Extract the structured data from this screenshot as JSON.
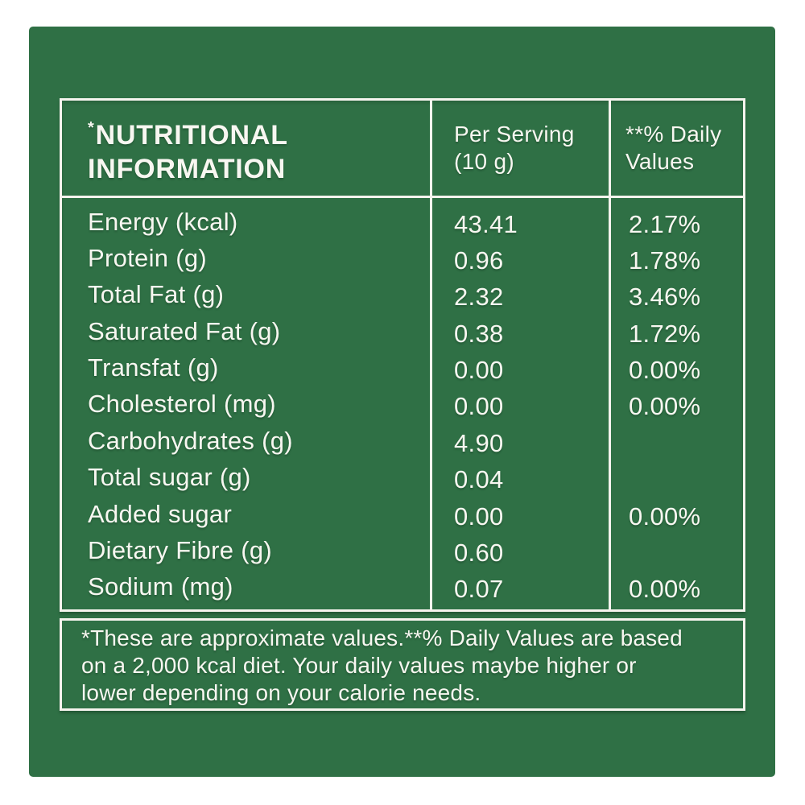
{
  "panel": {
    "background_color": "#2f7045",
    "text_color": "#f8f7f1"
  },
  "table": {
    "header": {
      "title_asterisk": "*",
      "title": "NUTRITIONAL INFORMATION",
      "col_serving": {
        "line1": "Per Serving",
        "line2": "(10 g)"
      },
      "col_daily": {
        "line1": "**% Daily",
        "line2": "Values"
      }
    },
    "rows": [
      {
        "label": "Energy (kcal)",
        "per_serving": "43.41",
        "daily_value": "2.17%"
      },
      {
        "label": "Protein (g)",
        "per_serving": "0.96",
        "daily_value": "1.78%"
      },
      {
        "label": "Total Fat (g)",
        "per_serving": "2.32",
        "daily_value": "3.46%"
      },
      {
        "label": "Saturated Fat (g)",
        "per_serving": "0.38",
        "daily_value": "1.72%"
      },
      {
        "label": "Transfat (g)",
        "per_serving": "0.00",
        "daily_value": "0.00%"
      },
      {
        "label": "Cholesterol (mg)",
        "per_serving": "0.00",
        "daily_value": "0.00%"
      },
      {
        "label": "Carbohydrates (g)",
        "per_serving": "4.90",
        "daily_value": ""
      },
      {
        "label": "Total sugar (g)",
        "per_serving": "0.04",
        "daily_value": ""
      },
      {
        "label": "Added sugar",
        "per_serving": "0.00",
        "daily_value": "0.00%"
      },
      {
        "label": "Dietary Fibre (g)",
        "per_serving": "0.60",
        "daily_value": ""
      },
      {
        "label": "Sodium (mg)",
        "per_serving": "0.07",
        "daily_value": "0.00%"
      }
    ]
  },
  "footnote": {
    "lines": [
      "*These are approximate values.**% Daily Values are based",
      "on a 2,000 kcal diet. Your daily values maybe higher or",
      "lower depending on your calorie needs."
    ],
    "full_text": "*These are approximate values.**% Daily Values are based on a 2,000 kcal diet. Your daily values maybe higher or lower depending on your calorie needs."
  }
}
